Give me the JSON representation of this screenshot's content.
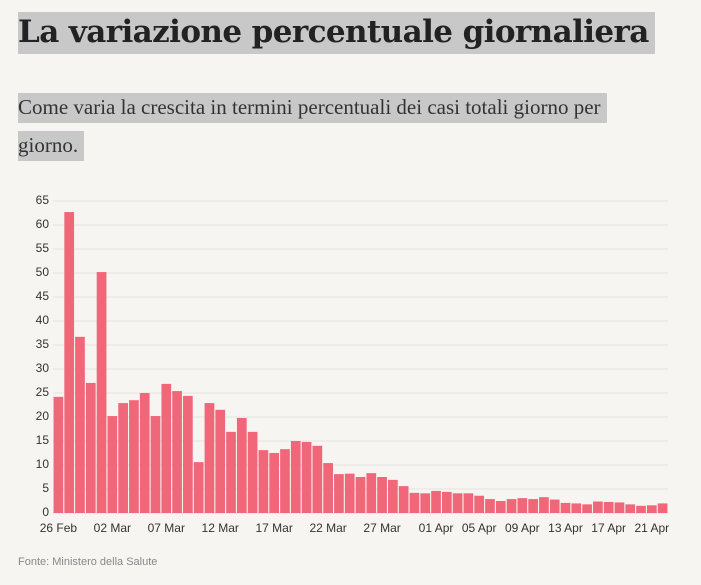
{
  "title": "La variazione percentuale giornaliera",
  "subtitle": "Come varia la crescita in termini percentuali dei casi totali giorno per giorno.",
  "source": "Fonte: Ministero della Salute",
  "chart_data": {
    "type": "bar",
    "color": "#f0677a",
    "grid": true,
    "categories": [
      "26 Feb",
      null,
      null,
      null,
      null,
      "02 Mar",
      null,
      null,
      null,
      null,
      "07 Mar",
      null,
      null,
      null,
      null,
      "12 Mar",
      null,
      null,
      null,
      null,
      "17 Mar",
      null,
      null,
      null,
      null,
      "22 Mar",
      null,
      null,
      null,
      null,
      "27 Mar",
      null,
      null,
      null,
      null,
      "01 Apr",
      null,
      null,
      null,
      "05 Apr",
      null,
      null,
      null,
      "09 Apr",
      null,
      null,
      null,
      "13 Apr",
      null,
      null,
      null,
      "17 Apr",
      null,
      null,
      null,
      "21 Apr",
      null
    ],
    "values": [
      24.2,
      62.7,
      36.7,
      27.1,
      50.2,
      20.2,
      22.9,
      23.5,
      25,
      20.2,
      26.9,
      25.4,
      24.4,
      10.6,
      22.9,
      21.5,
      16.9,
      19.8,
      16.9,
      13.1,
      12.5,
      13.3,
      15,
      14.8,
      14,
      10.4,
      8.1,
      8.2,
      7.5,
      8.3,
      7.5,
      6.9,
      5.6,
      4.2,
      4.1,
      4.6,
      4.4,
      4.1,
      4.1,
      3.6,
      2.9,
      2.5,
      2.9,
      3.1,
      2.9,
      3.3,
      2.8,
      2.1,
      2,
      1.8,
      2.4,
      2.3,
      2.2,
      1.8,
      1.5,
      1.6,
      2
    ],
    "ylim": [
      0,
      65
    ],
    "yticks": [
      0,
      5,
      10,
      15,
      20,
      25,
      30,
      35,
      40,
      45,
      50,
      55,
      60,
      65
    ]
  }
}
